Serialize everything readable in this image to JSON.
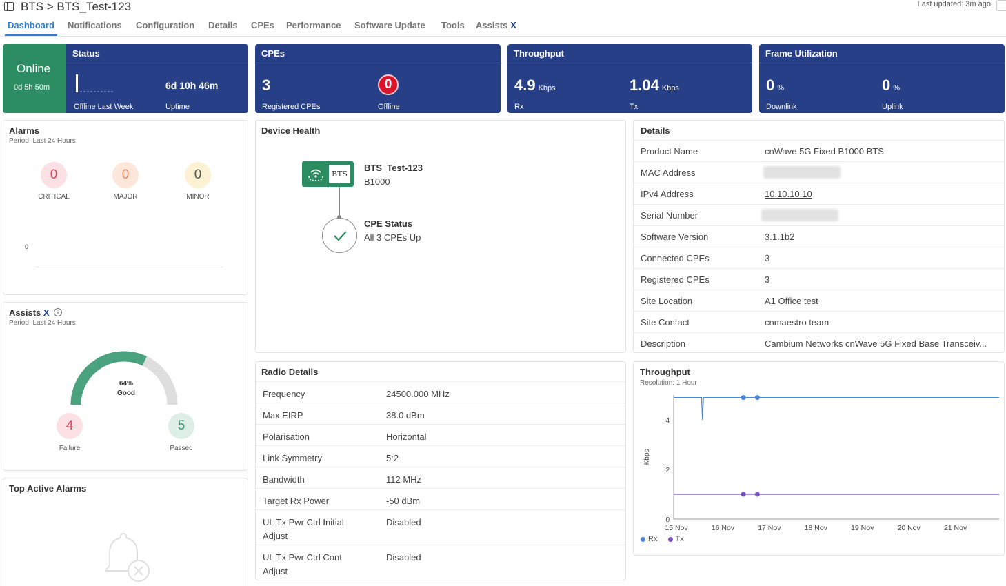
{
  "header": {
    "breadcrumb": "BTS > BTS_Test-123",
    "last_updated": "Last updated: 3m ago"
  },
  "tabs": [
    {
      "label": "Dashboard",
      "active": true
    },
    {
      "label": "Notifications"
    },
    {
      "label": "Configuration"
    },
    {
      "label": "Details"
    },
    {
      "label": "CPEs"
    },
    {
      "label": "Performance"
    },
    {
      "label": "Software Update"
    },
    {
      "label": "Tools"
    },
    {
      "label": "Assists",
      "suffix": "X"
    }
  ],
  "kpis": {
    "online": {
      "state": "Online",
      "duration": "0d 5h 50m"
    },
    "status": {
      "title": "Status",
      "offline_label": "Offline Last Week",
      "uptime_value": "6d 10h 46m",
      "uptime_label": "Uptime"
    },
    "cpes": {
      "title": "CPEs",
      "registered_value": "3",
      "registered_label": "Registered CPEs",
      "offline_value": "0",
      "offline_label": "Offline"
    },
    "throughput": {
      "title": "Throughput",
      "rx_value": "4.9",
      "rx_unit": "Kbps",
      "rx_label": "Rx",
      "tx_value": "1.04",
      "tx_unit": "Kbps",
      "tx_label": "Tx"
    },
    "frame": {
      "title": "Frame Utilization",
      "down_value": "0",
      "down_unit": "%",
      "down_label": "Downlink",
      "up_value": "0",
      "up_unit": "%",
      "up_label": "Uplink"
    }
  },
  "alarms": {
    "title": "Alarms",
    "period": "Period: Last 24 Hours",
    "critical": {
      "value": "0",
      "label": "CRITICAL"
    },
    "major": {
      "value": "0",
      "label": "MAJOR"
    },
    "minor": {
      "value": "0",
      "label": "MINOR"
    },
    "axis_zero": "0"
  },
  "assists": {
    "title": "Assists",
    "x_mark": "X",
    "period": "Period: Last 24 Hours",
    "gauge_percent": "64%",
    "gauge_label": "Good",
    "gauge_fraction": 0.64,
    "failure": {
      "value": "4",
      "label": "Failure"
    },
    "passed": {
      "value": "5",
      "label": "Passed"
    }
  },
  "top_alarms": {
    "title": "Top Active Alarms"
  },
  "device_health": {
    "title": "Device Health",
    "device_tag": "BTS",
    "device_name": "BTS_Test-123",
    "device_model": "B1000",
    "cpe_status_title": "CPE Status",
    "cpe_status_text": "All 3 CPEs Up"
  },
  "details": {
    "title": "Details",
    "rows": [
      {
        "key": "Product Name",
        "value": "cnWave 5G Fixed B1000 BTS"
      },
      {
        "key": "MAC Address",
        "value": ""
      },
      {
        "key": "IPv4 Address",
        "value": "10.10.10.10"
      },
      {
        "key": "Serial Number",
        "value": ""
      },
      {
        "key": "Software Version",
        "value": "3.1.1b2"
      },
      {
        "key": "Connected CPEs",
        "value": "3"
      },
      {
        "key": "Registered CPEs",
        "value": "3"
      },
      {
        "key": "Site Location",
        "value": "A1 Office test"
      },
      {
        "key": "Site Contact",
        "value": "cnmaestro team"
      },
      {
        "key": "Description",
        "value": "Cambium Networks cnWave 5G Fixed Base Transceiv..."
      }
    ]
  },
  "radio": {
    "title": "Radio Details",
    "rows": [
      {
        "key": "Frequency",
        "value": "24500.000 MHz"
      },
      {
        "key": "Max EIRP",
        "value": "38.0 dBm"
      },
      {
        "key": "Polarisation",
        "value": "Horizontal"
      },
      {
        "key": "Link Symmetry",
        "value": "5:2"
      },
      {
        "key": "Bandwidth",
        "value": "112 MHz"
      },
      {
        "key": "Target Rx Power",
        "value": "-50 dBm"
      },
      {
        "key": "UL Tx Pwr Ctrl Initial Adjust",
        "value": "Disabled"
      },
      {
        "key": "UL Tx Pwr Ctrl Cont Adjust",
        "value": "Disabled"
      }
    ]
  },
  "colors": {
    "kpi_blue": "#263f86",
    "online_green": "#2c8d62",
    "rx_blue": "#4a86d8",
    "tx_purple": "#7b4fc6",
    "gauge_green": "#4aa37e"
  },
  "chart_data": {
    "type": "line",
    "title": "Throughput",
    "subtitle": "Resolution: 1 Hour",
    "ylabel": "Kbps",
    "ylim": [
      0,
      5
    ],
    "yticks": [
      "0",
      "2",
      "4"
    ],
    "x_labels": [
      "15 Nov",
      "16 Nov",
      "17 Nov",
      "18 Nov",
      "19 Nov",
      "20 Nov",
      "21 Nov"
    ],
    "series": [
      {
        "name": "Rx",
        "color": "#4a86d8",
        "x": [
          15.0,
          15.6,
          15.62,
          15.64,
          15.66,
          16.5,
          16.8,
          22.0
        ],
        "y": [
          4.9,
          4.9,
          4.0,
          4.9,
          4.9,
          4.9,
          4.9,
          4.9
        ],
        "markers_x": [
          16.5,
          16.8
        ]
      },
      {
        "name": "Tx",
        "color": "#7b4fc6",
        "x": [
          15.0,
          22.0
        ],
        "y": [
          1.0,
          1.0
        ],
        "markers_x": [
          16.5,
          16.8
        ]
      }
    ],
    "legend": "bottom-left"
  }
}
